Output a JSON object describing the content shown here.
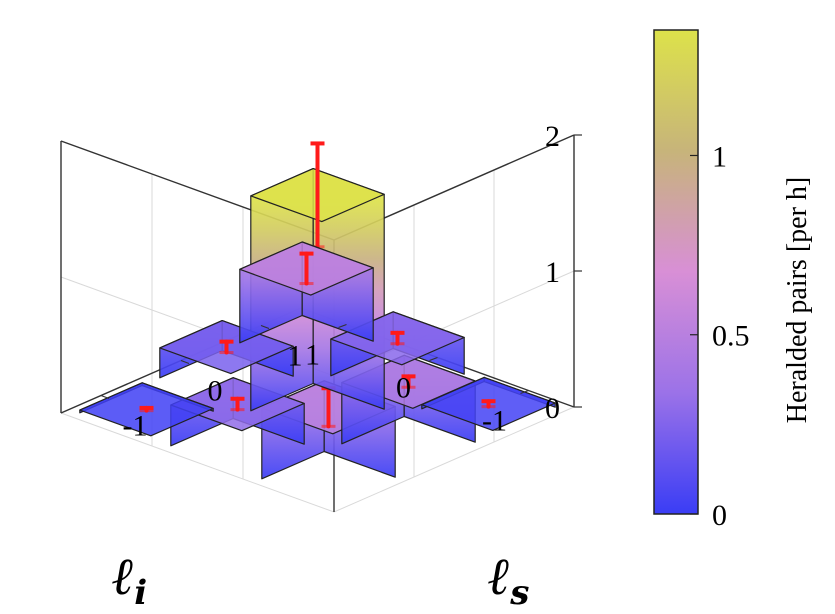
{
  "chart_data": {
    "type": "bar3d",
    "title": "",
    "xlabel": "ℓ",
    "xlabel_sub": "i",
    "ylabel": "ℓ",
    "ylabel_sub": "s",
    "zlim": [
      0,
      2
    ],
    "z_ticks": [
      "0",
      "1",
      "2"
    ],
    "li_ticks": [
      "-1",
      "0",
      "1"
    ],
    "ls_ticks": [
      "-1",
      "0",
      "1"
    ],
    "grid": true,
    "bars": [
      {
        "li": -1,
        "ls": -1,
        "value": 0.52,
        "err": 0.14
      },
      {
        "li": -1,
        "ls": 0,
        "value": 0.45,
        "err": 0.04
      },
      {
        "li": -1,
        "ls": 1,
        "value": 0.03,
        "err": 0.02
      },
      {
        "li": 0,
        "ls": -1,
        "value": 0.3,
        "err": 0.04
      },
      {
        "li": 0,
        "ls": 0,
        "value": 1.58,
        "err": 0.38
      },
      {
        "li": 0,
        "ls": 1,
        "value": 0.27,
        "err": 0.04
      },
      {
        "li": 1,
        "ls": -1,
        "value": 0.02,
        "err": 0.01
      },
      {
        "li": 1,
        "ls": 0,
        "value": 0.22,
        "err": 0.04
      },
      {
        "li": 1,
        "ls": 1,
        "value": 0.54,
        "err": 0.11
      }
    ],
    "colorbar": {
      "label": "Heralded pairs [per h]",
      "range": [
        0,
        1.35
      ],
      "ticks": [
        {
          "value": 0,
          "label": "0"
        },
        {
          "value": 0.5,
          "label": "0.5"
        },
        {
          "value": 1,
          "label": "1"
        }
      ],
      "colors": [
        "#3a3df5",
        "#9b72e8",
        "#d88fd6",
        "#c7b47a",
        "#dde24a"
      ]
    }
  }
}
